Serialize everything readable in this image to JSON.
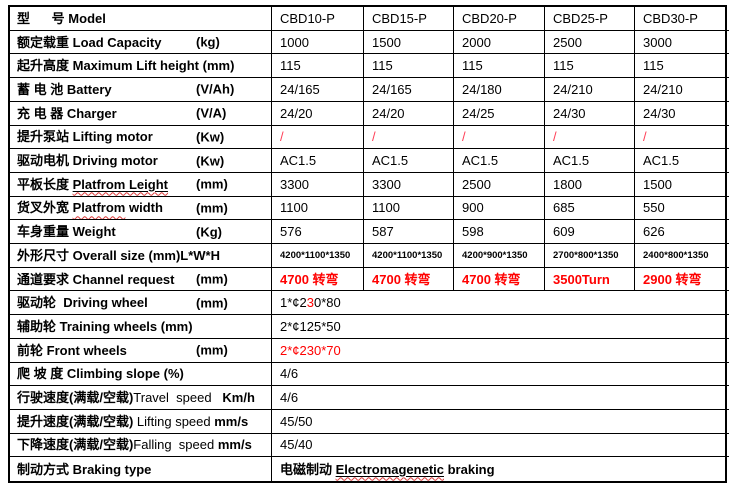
{
  "colors": {
    "text": "#000000",
    "red": "#ff0000",
    "slash_red": "#ff3d55",
    "wavy_underline": "#dd3b3b",
    "border": "#000000",
    "background": "#ffffff"
  },
  "table": {
    "rows": [
      {
        "key": "model",
        "label": [
          {
            "t": "型      号 ",
            "b": true
          },
          {
            "t": "Model",
            "b": true
          }
        ],
        "unit": "",
        "values": [
          "CBD10-P",
          "CBD15-P",
          "CBD20-P",
          "CBD25-P",
          "CBD30-P"
        ]
      },
      {
        "key": "load-capacity",
        "label": [
          {
            "t": "额定载重 ",
            "b": true
          },
          {
            "t": "Load Capacity",
            "b": true
          }
        ],
        "unit": "(kg)",
        "values": [
          "1000",
          "1500",
          "2000",
          "2500",
          "3000"
        ]
      },
      {
        "key": "max-lift-height",
        "label": [
          {
            "t": "起升高度 ",
            "b": true
          },
          {
            "t": "Maximum Lift height (mm)",
            "b": true
          }
        ],
        "unit": "",
        "values": [
          "115",
          "115",
          "115",
          "115",
          "115"
        ]
      },
      {
        "key": "battery",
        "label": [
          {
            "t": "蓄 电 池 ",
            "b": true
          },
          {
            "t": "Battery",
            "b": true
          }
        ],
        "unit": "(V/Ah)",
        "values": [
          "24/165",
          "24/165",
          "24/180",
          "24/210",
          "24/210"
        ]
      },
      {
        "key": "charger",
        "label": [
          {
            "t": "充 电 器 ",
            "b": true
          },
          {
            "t": "Charger",
            "b": true
          }
        ],
        "unit": "(V/A)",
        "values": [
          "24/20",
          "24/20",
          "24/25",
          "24/30",
          "24/30"
        ]
      },
      {
        "key": "lifting-motor",
        "label": [
          {
            "t": "提升泵站 ",
            "b": true
          },
          {
            "t": "Lifting motor",
            "b": true
          }
        ],
        "unit": "(Kw)",
        "values": [
          "/",
          "/",
          "/",
          "/",
          "/"
        ],
        "values_class": "slashred"
      },
      {
        "key": "driving-motor",
        "label": [
          {
            "t": "驱动电机 ",
            "b": true
          },
          {
            "t": "Driving motor",
            "b": true
          }
        ],
        "unit": "(Kw)",
        "values": [
          "AC1.5",
          "AC1.5",
          "AC1.5",
          "AC1.5",
          "AC1.5"
        ]
      },
      {
        "key": "platform-length",
        "label": [
          {
            "t": "平板长度 ",
            "b": true
          },
          {
            "t": "Platfrom Leight",
            "b": true,
            "u": true,
            "w": true
          }
        ],
        "unit": "(mm)",
        "values": [
          "3300",
          "3300",
          "2500",
          "1800",
          "1500"
        ]
      },
      {
        "key": "platform-width",
        "label": [
          {
            "t": "货叉外宽 ",
            "b": true
          },
          {
            "t": "Platfrom",
            "b": true,
            "w": true
          },
          {
            "t": " width",
            "b": true
          }
        ],
        "unit": "(mm)",
        "values": [
          "1100",
          "1100",
          "900",
          "685",
          "550"
        ]
      },
      {
        "key": "weight",
        "label": [
          {
            "t": "车身重量 ",
            "b": true
          },
          {
            "t": "Weight",
            "b": true
          }
        ],
        "unit": "(Kg)",
        "values": [
          "576",
          "587",
          "598",
          "609",
          "626"
        ]
      },
      {
        "key": "overall-size",
        "label": [
          {
            "t": "外形尺寸 ",
            "b": true
          },
          {
            "t": "Overall size (mm)L*W*H",
            "b": true
          }
        ],
        "unit": "",
        "values": [
          "4200*1100*1350",
          "4200*1100*1350",
          "4200*900*1350",
          "2700*800*1350",
          "2400*800*1350"
        ],
        "values_class": "small-val"
      },
      {
        "key": "channel-request",
        "label": [
          {
            "t": "通道要求 ",
            "b": true
          },
          {
            "t": "Channel request",
            "b": true
          }
        ],
        "unit": "(mm)",
        "values": [
          "4700 转弯",
          "4700 转弯",
          "4700 转弯",
          "3500Turn",
          "2900 转弯"
        ],
        "values_class": "red b"
      },
      {
        "key": "driving-wheel",
        "label": [
          {
            "t": "驱动轮  ",
            "b": true
          },
          {
            "t": "Driving wheel",
            "b": true
          }
        ],
        "unit": "(mm)",
        "span": [
          {
            "t": "1*¢2"
          },
          {
            "t": "3",
            "red": true
          },
          {
            "t": "0*80"
          }
        ]
      },
      {
        "key": "training-wheels",
        "label": [
          {
            "t": "辅助轮 ",
            "b": true
          },
          {
            "t": "Training wheels (mm)",
            "b": true
          }
        ],
        "unit": "",
        "span": [
          {
            "t": "2*¢125*50"
          }
        ]
      },
      {
        "key": "front-wheels",
        "label": [
          {
            "t": "前轮 ",
            "b": true
          },
          {
            "t": "Front wheels",
            "b": true
          }
        ],
        "unit": "(mm)",
        "span": [
          {
            "t": "2*¢230*70",
            "red": true
          }
        ]
      },
      {
        "key": "climbing-slope",
        "label": [
          {
            "t": "爬 坡 度 ",
            "b": true
          },
          {
            "t": "Climbing slope (%)",
            "b": true
          }
        ],
        "unit": "",
        "span": [
          {
            "t": "4/6"
          }
        ]
      },
      {
        "key": "travel-speed",
        "label": [
          {
            "t": "行驶速度(满载/空载)",
            "b": true
          },
          {
            "t": "Travel  speed",
            "b": false
          },
          {
            "t": "   ",
            "b": false
          },
          {
            "t": "Km/h",
            "b": true
          }
        ],
        "unit": "",
        "span": [
          {
            "t": "4/6"
          }
        ]
      },
      {
        "key": "lifting-speed",
        "label": [
          {
            "t": "提升速度(满载/空载) ",
            "b": true
          },
          {
            "t": "Lifting speed ",
            "b": false
          },
          {
            "t": "mm/s",
            "b": true
          }
        ],
        "unit": "",
        "span": [
          {
            "t": "45/50"
          }
        ]
      },
      {
        "key": "falling-speed",
        "label": [
          {
            "t": "下降速度(满载/空载)",
            "b": true
          },
          {
            "t": "Falling  speed ",
            "b": false
          },
          {
            "t": "mm/s",
            "b": true
          }
        ],
        "unit": "",
        "span": [
          {
            "t": "45/40"
          }
        ]
      },
      {
        "key": "braking-type",
        "label": [
          {
            "t": "制动方式 ",
            "b": true
          },
          {
            "t": "Braking type",
            "b": true
          }
        ],
        "unit": "",
        "span": [
          {
            "t": "电磁制动 ",
            "b": true
          },
          {
            "t": "Electromagenetic",
            "b": true,
            "u": true,
            "w": true
          },
          {
            "t": " braking",
            "b": true
          }
        ]
      }
    ]
  }
}
